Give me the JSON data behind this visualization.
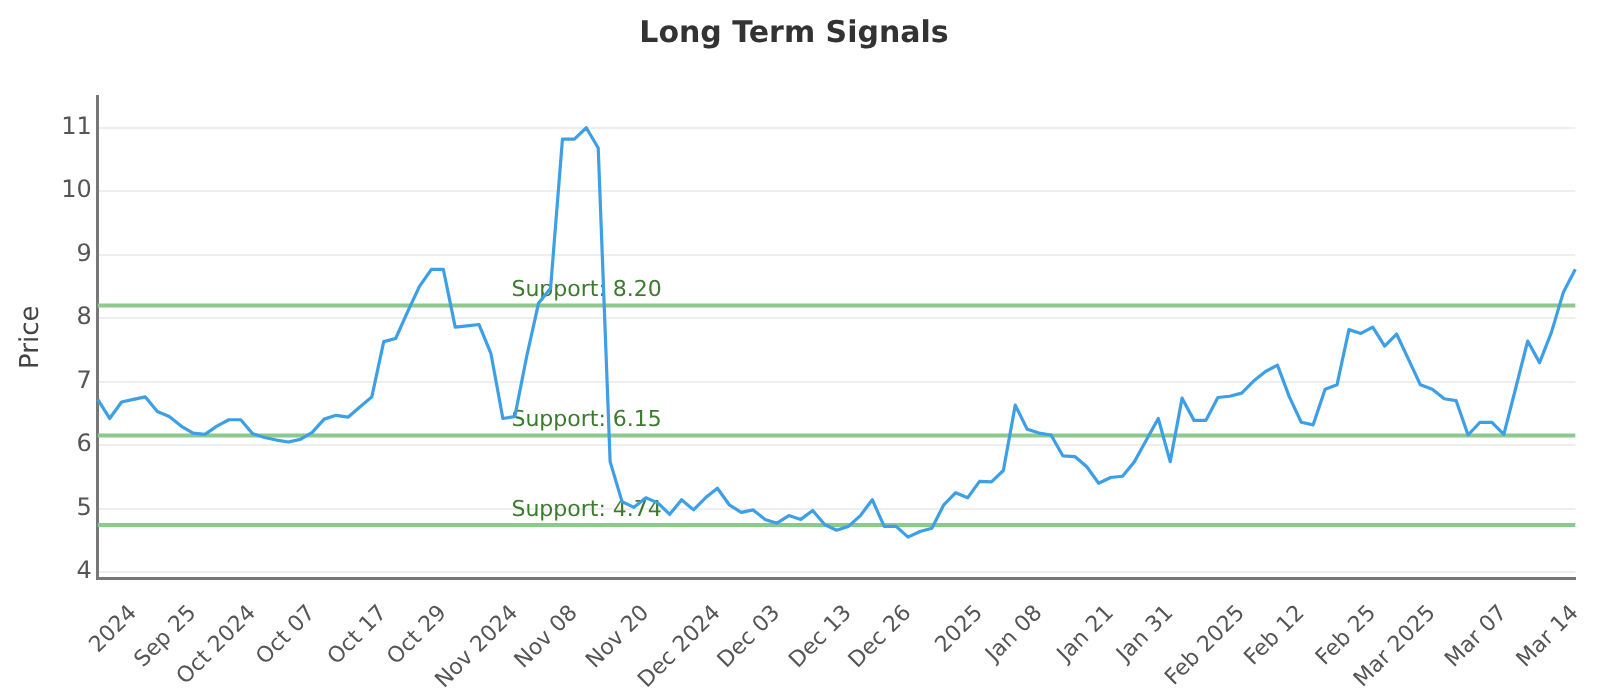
{
  "chart_data": {
    "type": "line",
    "title": "Long Term Signals",
    "ylabel": "Price",
    "categories": [
      null,
      null,
      null,
      "2024",
      null,
      null,
      null,
      null,
      "Sep 25",
      null,
      null,
      null,
      null,
      "Oct 2024",
      null,
      null,
      null,
      null,
      "Oct 07",
      null,
      null,
      null,
      null,
      null,
      "Oct 17",
      null,
      null,
      null,
      null,
      "Oct 29",
      null,
      null,
      null,
      null,
      null,
      "Nov 2024",
      null,
      null,
      null,
      null,
      "Nov 08",
      null,
      null,
      null,
      null,
      null,
      "Nov 20",
      null,
      null,
      null,
      null,
      null,
      "Dec 2024",
      null,
      null,
      null,
      null,
      "Dec 03",
      null,
      null,
      null,
      null,
      null,
      "Dec 13",
      null,
      null,
      null,
      null,
      "Dec 26",
      null,
      null,
      null,
      null,
      null,
      "2025",
      null,
      null,
      null,
      null,
      "Jan 08",
      null,
      null,
      null,
      null,
      null,
      "Jan 21",
      null,
      null,
      null,
      null,
      "Jan 31",
      null,
      null,
      null,
      null,
      null,
      "Feb 2025",
      null,
      null,
      null,
      null,
      "Feb 12",
      null,
      null,
      null,
      null,
      null,
      "Feb 25",
      null,
      null,
      null,
      null,
      "Mar 2025",
      null,
      null,
      null,
      null,
      null,
      "Mar 07",
      null,
      null,
      null,
      null,
      null,
      "Mar 14"
    ],
    "ylim": [
      3.9,
      11.5
    ],
    "yticks": [
      4,
      5,
      6,
      7,
      8,
      9,
      10,
      11
    ],
    "grid": "y",
    "legend": false,
    "marker": "none",
    "line_style": "solid",
    "ref_lines": [
      {
        "axis": "y",
        "value": 8.2,
        "label": "Support: 8.20",
        "color": "#8cc98c"
      },
      {
        "axis": "y",
        "value": 6.15,
        "label": "Support: 6.15",
        "color": "#8cc98c"
      },
      {
        "axis": "y",
        "value": 4.74,
        "label": "Support: 4.74",
        "color": "#8cc98c"
      }
    ],
    "series": [
      {
        "color": "#3d9fe6",
        "values": [
          6.72,
          6.42,
          6.68,
          6.72,
          6.76,
          6.53,
          6.45,
          6.3,
          6.19,
          6.17,
          6.3,
          6.4,
          6.4,
          6.18,
          6.12,
          6.08,
          6.05,
          6.09,
          6.2,
          6.41,
          6.47,
          6.44,
          6.6,
          6.76,
          7.63,
          7.68,
          8.1,
          8.5,
          8.77,
          8.77,
          7.86,
          7.88,
          7.9,
          7.44,
          6.42,
          6.45,
          7.4,
          8.24,
          8.47,
          10.82,
          10.82,
          11,
          10.68,
          5.74,
          5.11,
          5.02,
          5.17,
          5.09,
          4.91,
          5.14,
          4.98,
          5.17,
          5.32,
          5.06,
          4.94,
          4.98,
          4.83,
          4.77,
          4.89,
          4.83,
          4.97,
          4.75,
          4.66,
          4.72,
          4.89,
          5.14,
          4.72,
          4.72,
          4.55,
          4.64,
          4.69,
          5.06,
          5.25,
          5.17,
          5.43,
          5.42,
          5.6,
          6.63,
          6.25,
          6.19,
          6.16,
          5.83,
          5.82,
          5.66,
          5.4,
          5.49,
          5.51,
          5.74,
          6.08,
          6.42,
          5.74,
          6.74,
          6.39,
          6.39,
          6.75,
          6.77,
          6.82,
          7.01,
          7.16,
          7.26,
          6.76,
          6.36,
          6.32,
          6.88,
          6.95,
          7.82,
          7.76,
          7.86,
          7.56,
          7.75,
          7.35,
          6.95,
          6.88,
          6.73,
          6.7,
          6.16,
          6.36,
          6.36,
          6.17,
          6.9,
          7.64,
          7.3,
          7.78,
          8.41,
          8.77
        ]
      }
    ]
  }
}
